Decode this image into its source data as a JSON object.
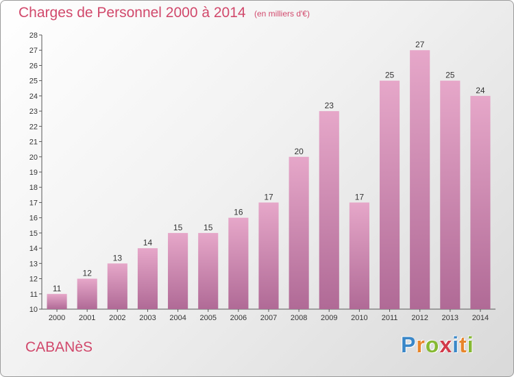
{
  "header": {
    "title": "Charges de Personnel 2000 à 2014",
    "subtitle": "(en milliers d'€)"
  },
  "footer": {
    "commune": "CABANèS",
    "logo": {
      "p": "P",
      "r": "r",
      "o": "o",
      "x": "x",
      "i1": "i",
      "t": "t",
      "i2": "i"
    }
  },
  "colors": {
    "bar_top": "#e6a7c9",
    "bar_bottom": "#b06a96",
    "title": "#d1486b"
  },
  "chart_data": {
    "type": "bar",
    "title": "Charges de Personnel 2000 à 2014",
    "subtitle": "(en milliers d'€)",
    "categories": [
      "2000",
      "2001",
      "2002",
      "2003",
      "2004",
      "2005",
      "2006",
      "2007",
      "2008",
      "2009",
      "2010",
      "2011",
      "2012",
      "2013",
      "2014"
    ],
    "values": [
      11,
      12,
      13,
      14,
      15,
      15,
      16,
      17,
      20,
      23,
      17,
      25,
      27,
      25,
      24
    ],
    "data_labels": [
      "11",
      "12",
      "13",
      "14",
      "15",
      "15",
      "16",
      "17",
      "20",
      "23",
      "17",
      "25",
      "27",
      "25",
      "24"
    ],
    "yticks": [
      "10",
      "11",
      "12",
      "13",
      "14",
      "15",
      "16",
      "17",
      "18",
      "19",
      "20",
      "21",
      "22",
      "23",
      "24",
      "25",
      "26",
      "27",
      "28"
    ],
    "ylim": [
      10,
      28
    ],
    "grid": false,
    "legend": "none"
  }
}
